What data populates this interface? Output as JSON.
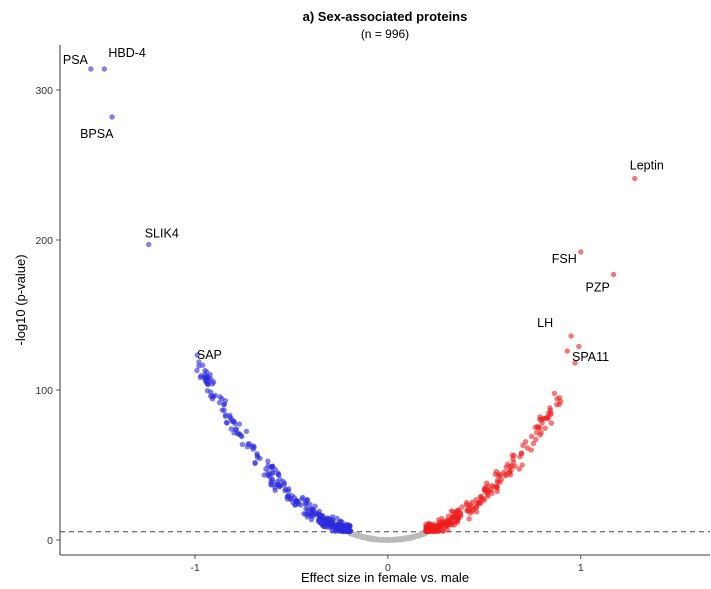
{
  "chart_data": {
    "type": "scatter",
    "title": "a) Sex-associated proteins",
    "subtitle": "(n = 996)",
    "xlabel": "Effect size in female vs. male",
    "ylabel": "-log10 (p-value)",
    "xlim": [
      -1.7,
      1.67
    ],
    "ylim": [
      -10,
      330
    ],
    "xticks": [
      "-1",
      "0",
      "1"
    ],
    "xtick_values": [
      -1,
      0,
      1
    ],
    "yticks": [
      "0",
      "100",
      "200",
      "300"
    ],
    "ytick_values": [
      0,
      100,
      200,
      300
    ],
    "threshold_line": 5.5,
    "grid": false,
    "colors": {
      "down": "#2b2bdd",
      "up": "#ee1c1c",
      "ns": "#bbbbbb",
      "line": "#444444"
    },
    "labeled_points": [
      {
        "label": "HBD-4",
        "x": -1.47,
        "y": 314,
        "group": "down"
      },
      {
        "label": "PSA",
        "x": -1.54,
        "y": 314,
        "group": "down"
      },
      {
        "label": "BPSA",
        "x": -1.43,
        "y": 282,
        "group": "down"
      },
      {
        "label": "SLIK4",
        "x": -1.24,
        "y": 197,
        "group": "down"
      },
      {
        "label": "SAP",
        "x": -0.98,
        "y": 116,
        "group": "down"
      },
      {
        "label": "Leptin",
        "x": 1.28,
        "y": 241,
        "group": "up"
      },
      {
        "label": "FSH",
        "x": 1.0,
        "y": 192,
        "group": "up"
      },
      {
        "label": "PZP",
        "x": 1.17,
        "y": 177,
        "group": "up"
      },
      {
        "label": "LH",
        "x": 0.95,
        "y": 136,
        "group": "up"
      },
      {
        "label": "SPA11",
        "x": 0.97,
        "y": 118,
        "group": "up"
      }
    ],
    "extra_points": [
      {
        "x": 0.99,
        "y": 129,
        "group": "up"
      },
      {
        "x": 0.93,
        "y": 126,
        "group": "up"
      },
      {
        "x": -0.99,
        "y": 113,
        "group": "down"
      },
      {
        "x": -0.95,
        "y": 110,
        "group": "down"
      }
    ],
    "series": [
      {
        "group": "down",
        "values_note": "",
        "x_range": [
          -1.0,
          -0.2
        ],
        "count": 330
      },
      {
        "group": "up",
        "x_range": [
          0.2,
          0.9
        ],
        "count": 300
      },
      {
        "group": "ns",
        "x_range": [
          -0.2,
          0.2
        ],
        "count": 360
      }
    ]
  }
}
